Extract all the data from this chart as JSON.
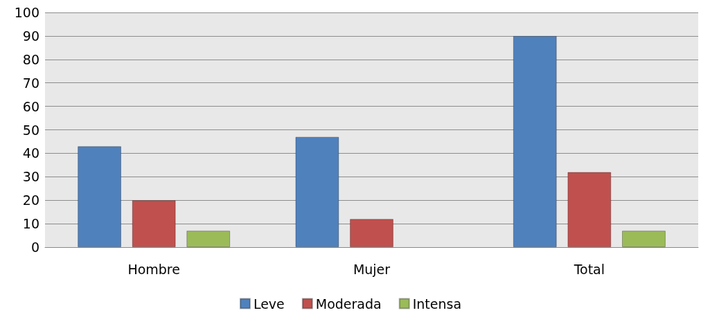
{
  "chart_data": {
    "type": "bar",
    "categories": [
      "Hombre",
      "Mujer",
      "Total"
    ],
    "series": [
      {
        "name": "Leve",
        "color": "#4f81bd",
        "values": [
          43,
          47,
          90
        ]
      },
      {
        "name": "Moderada",
        "color": "#c0504d",
        "values": [
          20,
          12,
          32
        ]
      },
      {
        "name": "Intensa",
        "color": "#9bbb59",
        "values": [
          7,
          0,
          7
        ]
      }
    ],
    "ylim": [
      0,
      100
    ],
    "yticks": [
      0,
      10,
      20,
      30,
      40,
      50,
      60,
      70,
      80,
      90,
      100
    ],
    "grid": "y",
    "legend": "bottom"
  }
}
